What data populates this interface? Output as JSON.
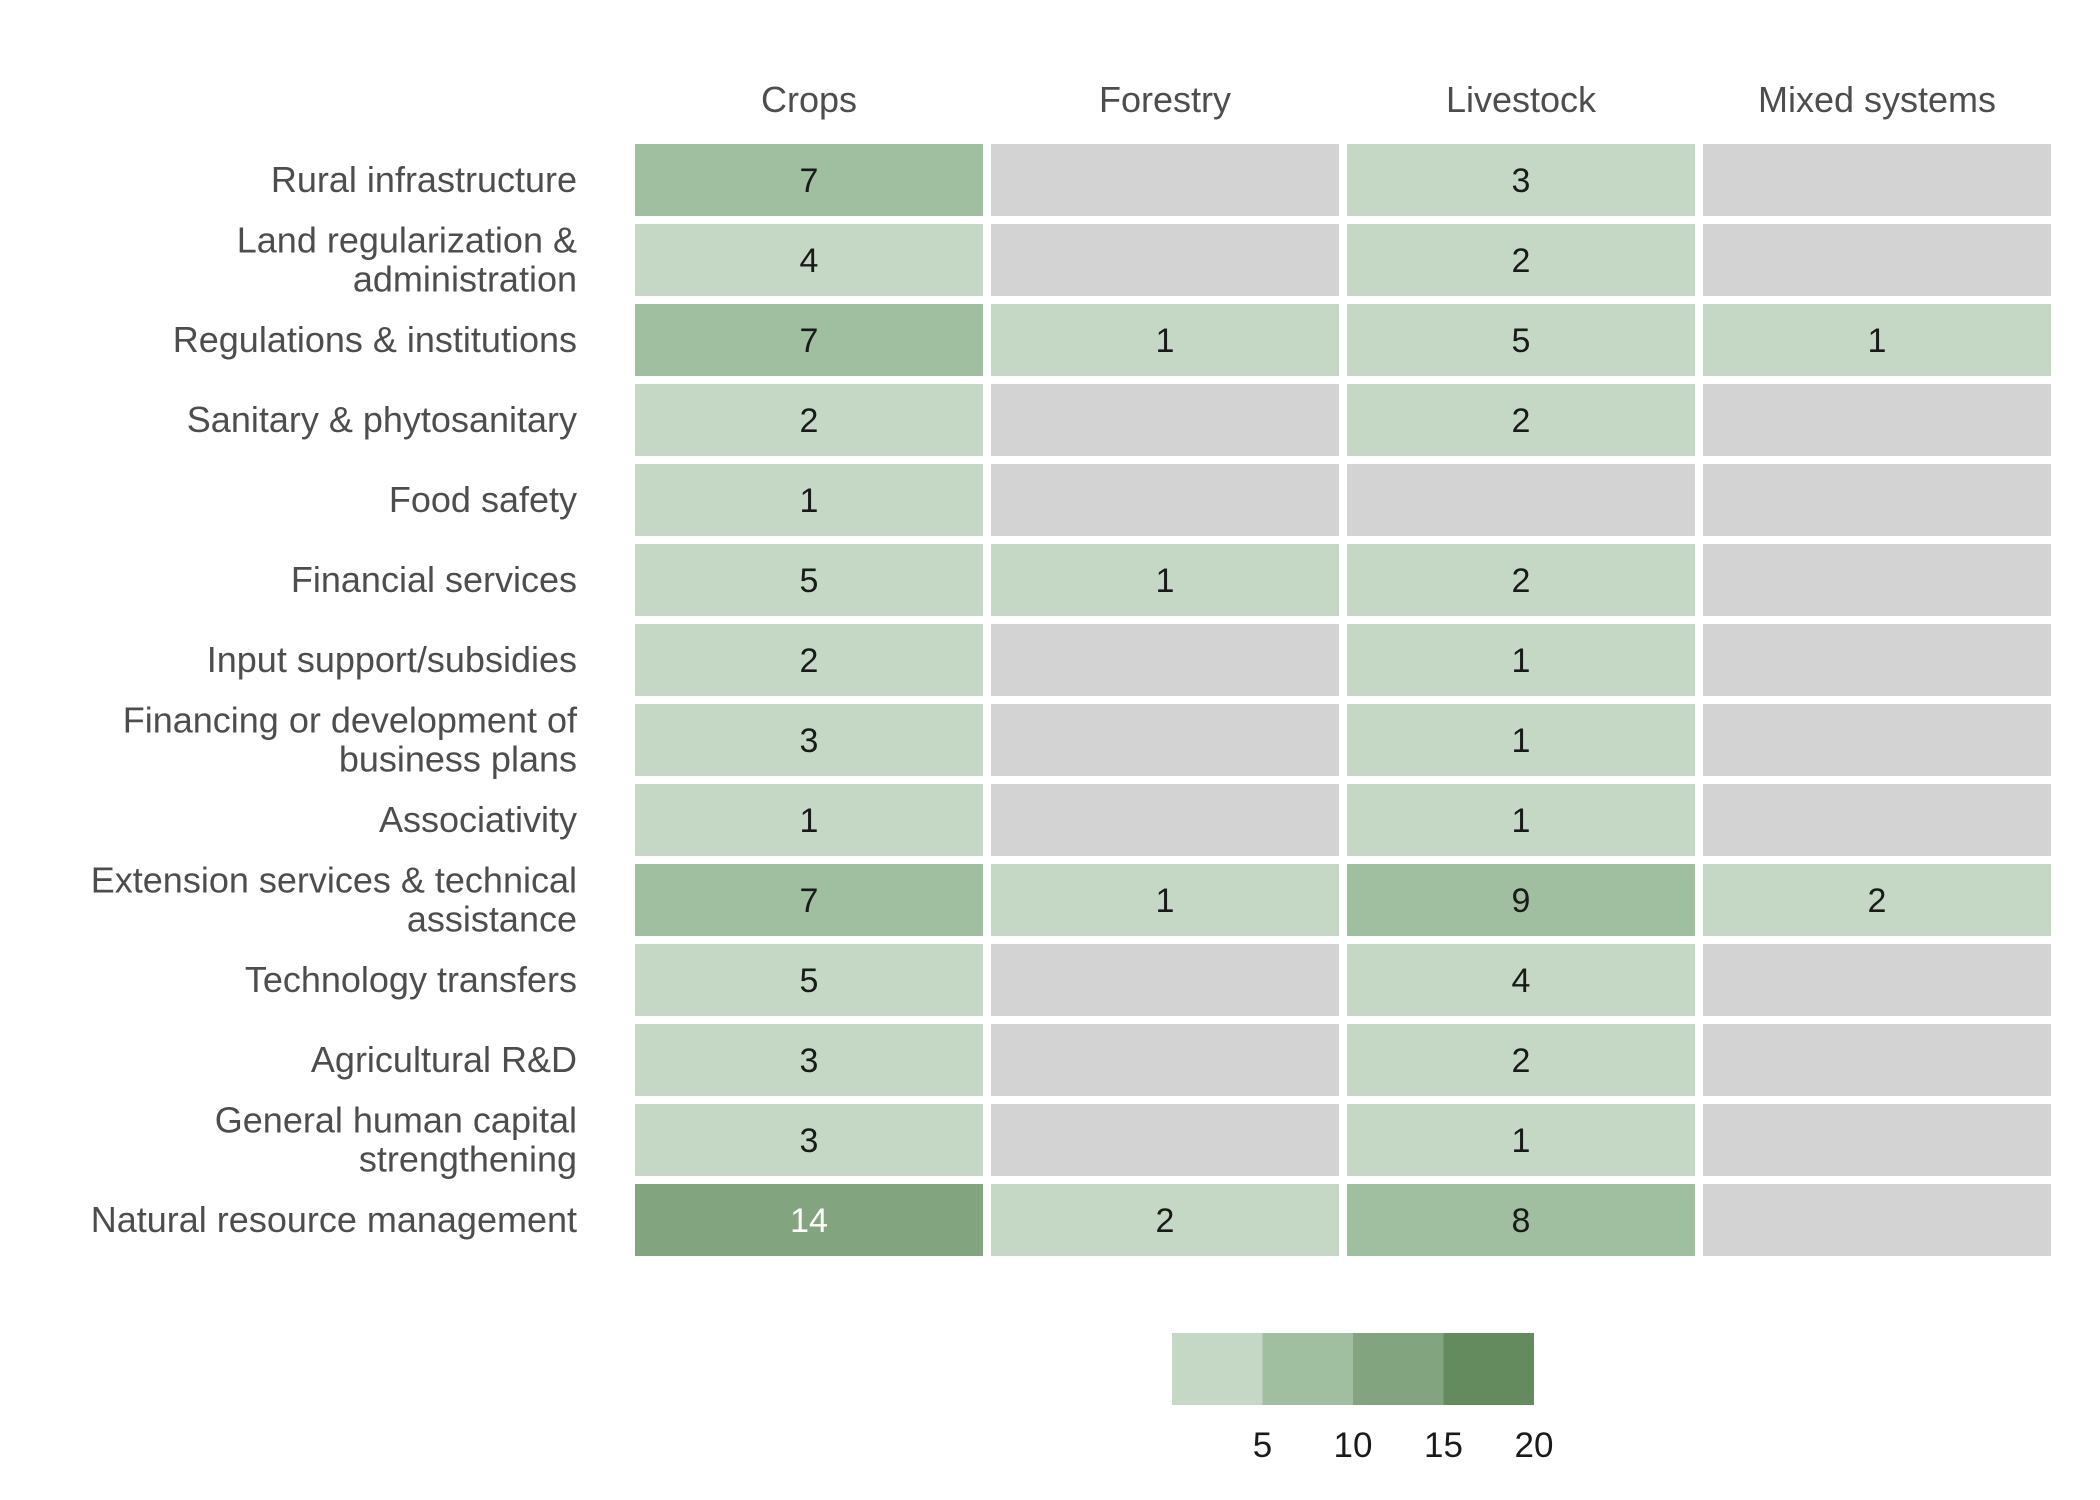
{
  "chart_data": {
    "type": "heatmap",
    "title": "",
    "columns": [
      "Crops",
      "Forestry",
      "Livestock",
      "Mixed systems"
    ],
    "rows": [
      "Rural infrastructure",
      "Land regularization & administration",
      "Regulations & institutions",
      "Sanitary & phytosanitary",
      "Food safety",
      "Financial services",
      "Input support/subsidies",
      "Financing or development of business plans",
      "Associativity",
      "Extension services & technical assistance",
      "Technology transfers",
      "Agricultural R&D",
      "General human capital strengthening",
      "Natural resource management"
    ],
    "row_label_lines": [
      [
        "Rural infrastructure"
      ],
      [
        "Land regularization &",
        "administration"
      ],
      [
        "Regulations & institutions"
      ],
      [
        "Sanitary & phytosanitary"
      ],
      [
        "Food safety"
      ],
      [
        "Financial services"
      ],
      [
        "Input support/subsidies"
      ],
      [
        "Financing or development of",
        "business plans"
      ],
      [
        "Associativity"
      ],
      [
        "Extension services & technical",
        "assistance"
      ],
      [
        "Technology transfers"
      ],
      [
        "Agricultural R&D"
      ],
      [
        "General human capital",
        "strengthening"
      ],
      [
        "Natural resource management"
      ]
    ],
    "values": [
      [
        7,
        null,
        3,
        null
      ],
      [
        4,
        null,
        2,
        null
      ],
      [
        7,
        1,
        5,
        1
      ],
      [
        2,
        null,
        2,
        null
      ],
      [
        1,
        null,
        null,
        null
      ],
      [
        5,
        1,
        2,
        null
      ],
      [
        2,
        null,
        1,
        null
      ],
      [
        3,
        null,
        1,
        null
      ],
      [
        1,
        null,
        1,
        null
      ],
      [
        7,
        1,
        9,
        2
      ],
      [
        5,
        null,
        4,
        null
      ],
      [
        3,
        null,
        2,
        null
      ],
      [
        3,
        null,
        1,
        null
      ],
      [
        14,
        2,
        8,
        null
      ]
    ],
    "missing_color": "#d3d3d3",
    "color_bins": [
      {
        "min": 0,
        "max": 5,
        "color": "#c5d8c5"
      },
      {
        "min": 5,
        "max": 10,
        "color": "#a0bea0"
      },
      {
        "min": 10,
        "max": 15,
        "color": "#82a47e"
      },
      {
        "min": 15,
        "max": 20,
        "color": "#638b5e"
      }
    ],
    "legend": {
      "position": "bottom",
      "ticks": [
        5,
        10,
        15,
        20
      ],
      "range": [
        0,
        20
      ]
    },
    "label_color_dark": "#1a1a1a",
    "label_color_light": "#ffffff"
  }
}
